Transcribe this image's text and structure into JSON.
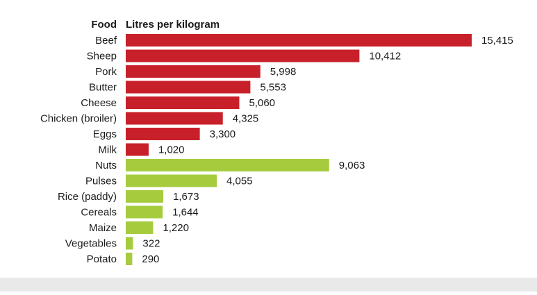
{
  "chart_data": {
    "type": "bar",
    "orientation": "horizontal",
    "header": {
      "category_column": "Food",
      "value_column": "Litres per kilogram"
    },
    "categories": [
      "Beef",
      "Sheep",
      "Pork",
      "Butter",
      "Cheese",
      "Chicken (broiler)",
      "Eggs",
      "Milk",
      "Nuts",
      "Pulses",
      "Rice (paddy)",
      "Cereals",
      "Maize",
      "Vegetables",
      "Potato"
    ],
    "values": [
      15415,
      10412,
      5998,
      5553,
      5060,
      4325,
      3300,
      1020,
      9063,
      4055,
      1673,
      1644,
      1220,
      322,
      290
    ],
    "value_labels": [
      "15,415",
      "10,412",
      "5,998",
      "5,553",
      "5,060",
      "4,325",
      "3,300",
      "1,020",
      "9,063",
      "4,055",
      "1,673",
      "1,644",
      "1,220",
      "322",
      "290"
    ],
    "groups": [
      {
        "color": "#c8202a",
        "count": 8
      },
      {
        "color": "#a6cc3d",
        "count": 7
      }
    ],
    "colors": {
      "animal": "#c8202a",
      "plant": "#a6cc3d"
    },
    "xlim": [
      0,
      15415
    ],
    "grid": false,
    "legend": "none"
  }
}
